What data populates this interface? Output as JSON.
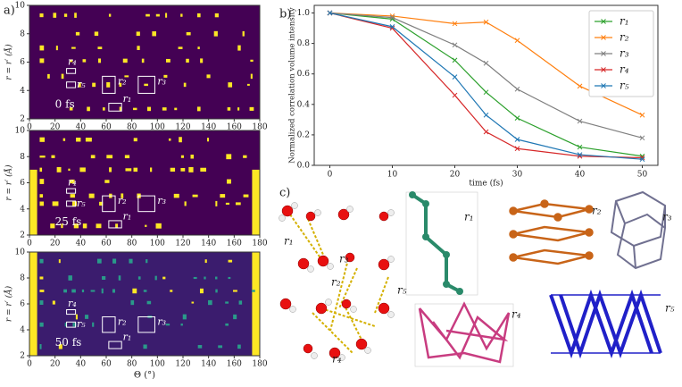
{
  "panel_labels": [
    "a)",
    "b)",
    "c)"
  ],
  "chart_data": [
    {
      "type": "heatmap",
      "time_label": "0 fs",
      "xlim": [
        0,
        180
      ],
      "ylim": [
        2,
        10
      ],
      "xticks": [
        0,
        20,
        40,
        60,
        80,
        100,
        120,
        140,
        160,
        180
      ],
      "yticks": [
        2,
        4,
        6,
        8,
        10
      ],
      "ylabel": "r = r′ (Å)",
      "annotations": [
        "r₁",
        "r₂",
        "r₃",
        "r₄",
        "r₅"
      ]
    },
    {
      "type": "heatmap",
      "time_label": "25 fs",
      "xlim": [
        0,
        180
      ],
      "ylim": [
        2,
        10
      ],
      "xticks": [
        0,
        20,
        40,
        60,
        80,
        100,
        120,
        140,
        160,
        180
      ],
      "yticks": [
        2,
        4,
        6,
        8,
        10
      ],
      "ylabel": "r = r′ (Å)",
      "annotations": [
        "r₁",
        "r₂",
        "r₃",
        "r₄",
        "r₅"
      ]
    },
    {
      "type": "heatmap",
      "time_label": "50 fs",
      "xlim": [
        0,
        180
      ],
      "ylim": [
        2,
        10
      ],
      "xticks": [
        0,
        20,
        40,
        60,
        80,
        100,
        120,
        140,
        160,
        180
      ],
      "yticks": [
        2,
        4,
        6,
        8,
        10
      ],
      "ylabel": "r = r′ (Å)",
      "xlabel": "Θ (°)",
      "annotations": [
        "r₁",
        "r₂",
        "r₃",
        "r₄",
        "r₅"
      ]
    },
    {
      "type": "line",
      "xlabel": "time (fs)",
      "ylabel": "Normalized correlation volume intensity",
      "legend": "upper right",
      "x": [
        0,
        10,
        20,
        25,
        30,
        40,
        50
      ],
      "xlim": [
        -2.5,
        52.5
      ],
      "xticks": [
        0,
        10,
        20,
        30,
        40,
        50
      ],
      "ylim": [
        0,
        1.05
      ],
      "yticks": [
        {
          "value": 0,
          "label": "0.0"
        },
        {
          "value": 0.2,
          "label": "0.2"
        },
        {
          "value": 0.4,
          "label": "0.4"
        },
        {
          "value": 0.6,
          "label": "0.6"
        },
        {
          "value": 0.8,
          "label": "0.8"
        },
        {
          "value": 1,
          "label": "1.0"
        }
      ],
      "series": [
        {
          "name": "r₁",
          "color": "#2ca02c",
          "values": [
            1.0,
            0.96,
            0.69,
            0.48,
            0.31,
            0.12,
            0.06
          ]
        },
        {
          "name": "r₂",
          "color": "#ff7f0e",
          "values": [
            1.0,
            0.98,
            0.93,
            0.94,
            0.82,
            0.52,
            0.33
          ]
        },
        {
          "name": "r₃",
          "color": "#7f7f7f",
          "values": [
            1.0,
            0.97,
            0.79,
            0.67,
            0.5,
            0.29,
            0.18
          ]
        },
        {
          "name": "r₄",
          "color": "#d62728",
          "values": [
            1.0,
            0.9,
            0.46,
            0.22,
            0.11,
            0.06,
            0.05
          ]
        },
        {
          "name": "r₅",
          "color": "#1f77b4",
          "values": [
            1.0,
            0.91,
            0.58,
            0.33,
            0.17,
            0.07,
            0.04
          ]
        }
      ]
    }
  ],
  "structures": {
    "cluster_labels": [
      "r₁",
      "r₂",
      "r₃",
      "r₄",
      "r₅"
    ],
    "structure_labels": [
      "r₁",
      "r₂",
      "r₃",
      "r₄",
      "r₅"
    ]
  }
}
